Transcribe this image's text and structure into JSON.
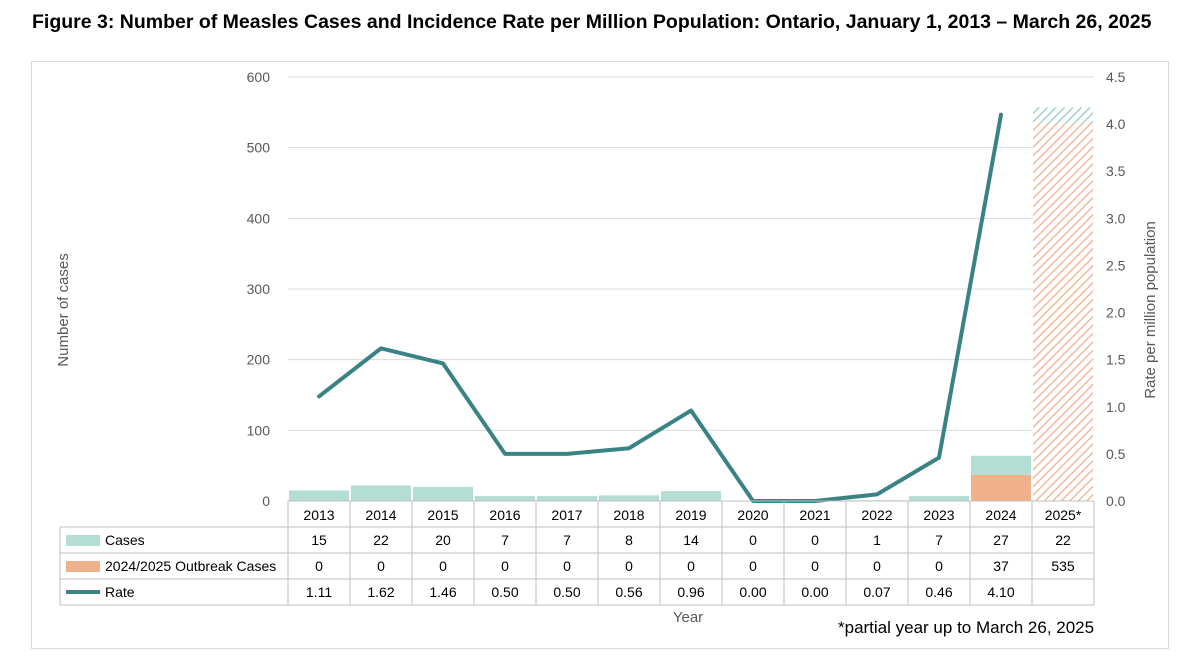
{
  "title": "Figure 3: Number of Measles Cases and Incidence Rate per Million Population: Ontario, January 1, 2013 – March 26, 2025",
  "footnote": "*partial year up to March 26, 2025",
  "colors": {
    "cases": "#b4ded4",
    "outbreak": "#f0b08a",
    "rate": "#3a8384",
    "grid": "#d9d9d9"
  },
  "chart_data": {
    "type": "bar",
    "title": "Figure 3: Number of Measles Cases and Incidence Rate per Million Population: Ontario, January 1, 2013 – March 26, 2025",
    "xlabel": "Year",
    "ylabel": "Number of cases",
    "y2label": "Rate per million population",
    "ylim": [
      0,
      600
    ],
    "y2lim": [
      0,
      4.5
    ],
    "yticks": [
      "0",
      "100",
      "200",
      "300",
      "400",
      "500",
      "600"
    ],
    "y2ticks": [
      "0.0",
      "0.5",
      "1.0",
      "1.5",
      "2.0",
      "2.5",
      "3.0",
      "3.5",
      "4.0",
      "4.5"
    ],
    "categories": [
      "2013",
      "2014",
      "2015",
      "2016",
      "2017",
      "2018",
      "2019",
      "2020",
      "2021",
      "2022",
      "2023",
      "2024",
      "2025*"
    ],
    "hatched_categories": [
      "2025*"
    ],
    "series": [
      {
        "name": "Cases",
        "kind": "bar-stack",
        "values": [
          15,
          22,
          20,
          7,
          7,
          8,
          14,
          0,
          0,
          1,
          7,
          27,
          22
        ],
        "labels": [
          "15",
          "22",
          "20",
          "7",
          "7",
          "8",
          "14",
          "0",
          "0",
          "1",
          "7",
          "27",
          "22"
        ]
      },
      {
        "name": "2024/2025 Outbreak Cases",
        "kind": "bar-stack",
        "values": [
          0,
          0,
          0,
          0,
          0,
          0,
          0,
          0,
          0,
          0,
          0,
          37,
          535
        ],
        "labels": [
          "0",
          "0",
          "0",
          "0",
          "0",
          "0",
          "0",
          "0",
          "0",
          "0",
          "0",
          "37",
          "535"
        ]
      },
      {
        "name": "Rate",
        "kind": "line",
        "axis": "right",
        "values": [
          1.11,
          1.62,
          1.46,
          0.5,
          0.5,
          0.56,
          0.96,
          0.0,
          0.0,
          0.07,
          0.46,
          4.1,
          null
        ],
        "labels": [
          "1.11",
          "1.62",
          "1.46",
          "0.50",
          "0.50",
          "0.56",
          "0.96",
          "0.00",
          "0.00",
          "0.07",
          "0.46",
          "4.10",
          ""
        ]
      }
    ]
  }
}
